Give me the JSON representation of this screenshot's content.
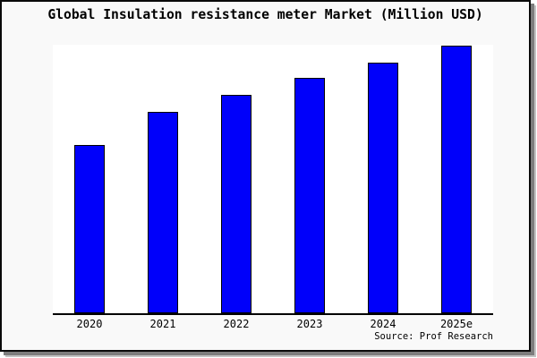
{
  "chart_data": {
    "type": "bar",
    "title": "Global Insulation resistance meter Market (Million USD)",
    "categories": [
      "2020",
      "2021",
      "2022",
      "2023",
      "2024",
      "2025e"
    ],
    "values": [
      62.7,
      75.1,
      81.4,
      87.6,
      93.3,
      99.7
    ],
    "values_note": "relative bar heights in % of plot maximum; chart shows no y-axis tick values",
    "xlabel": "",
    "ylabel": "",
    "ylim": [
      0,
      100
    ],
    "grid": false,
    "legend": false,
    "bar_color": "#0000fa",
    "bar_border_color": "#000000",
    "axis_line_color": "#000000"
  },
  "footer": {
    "source_label": "Source: Prof Research"
  },
  "colors": {
    "page_background": "#f9f9f9",
    "plot_background": "#ffffff",
    "frame_border": "#0a0a0a",
    "shadow": "#7d7d7d",
    "title_text": "#000000"
  }
}
